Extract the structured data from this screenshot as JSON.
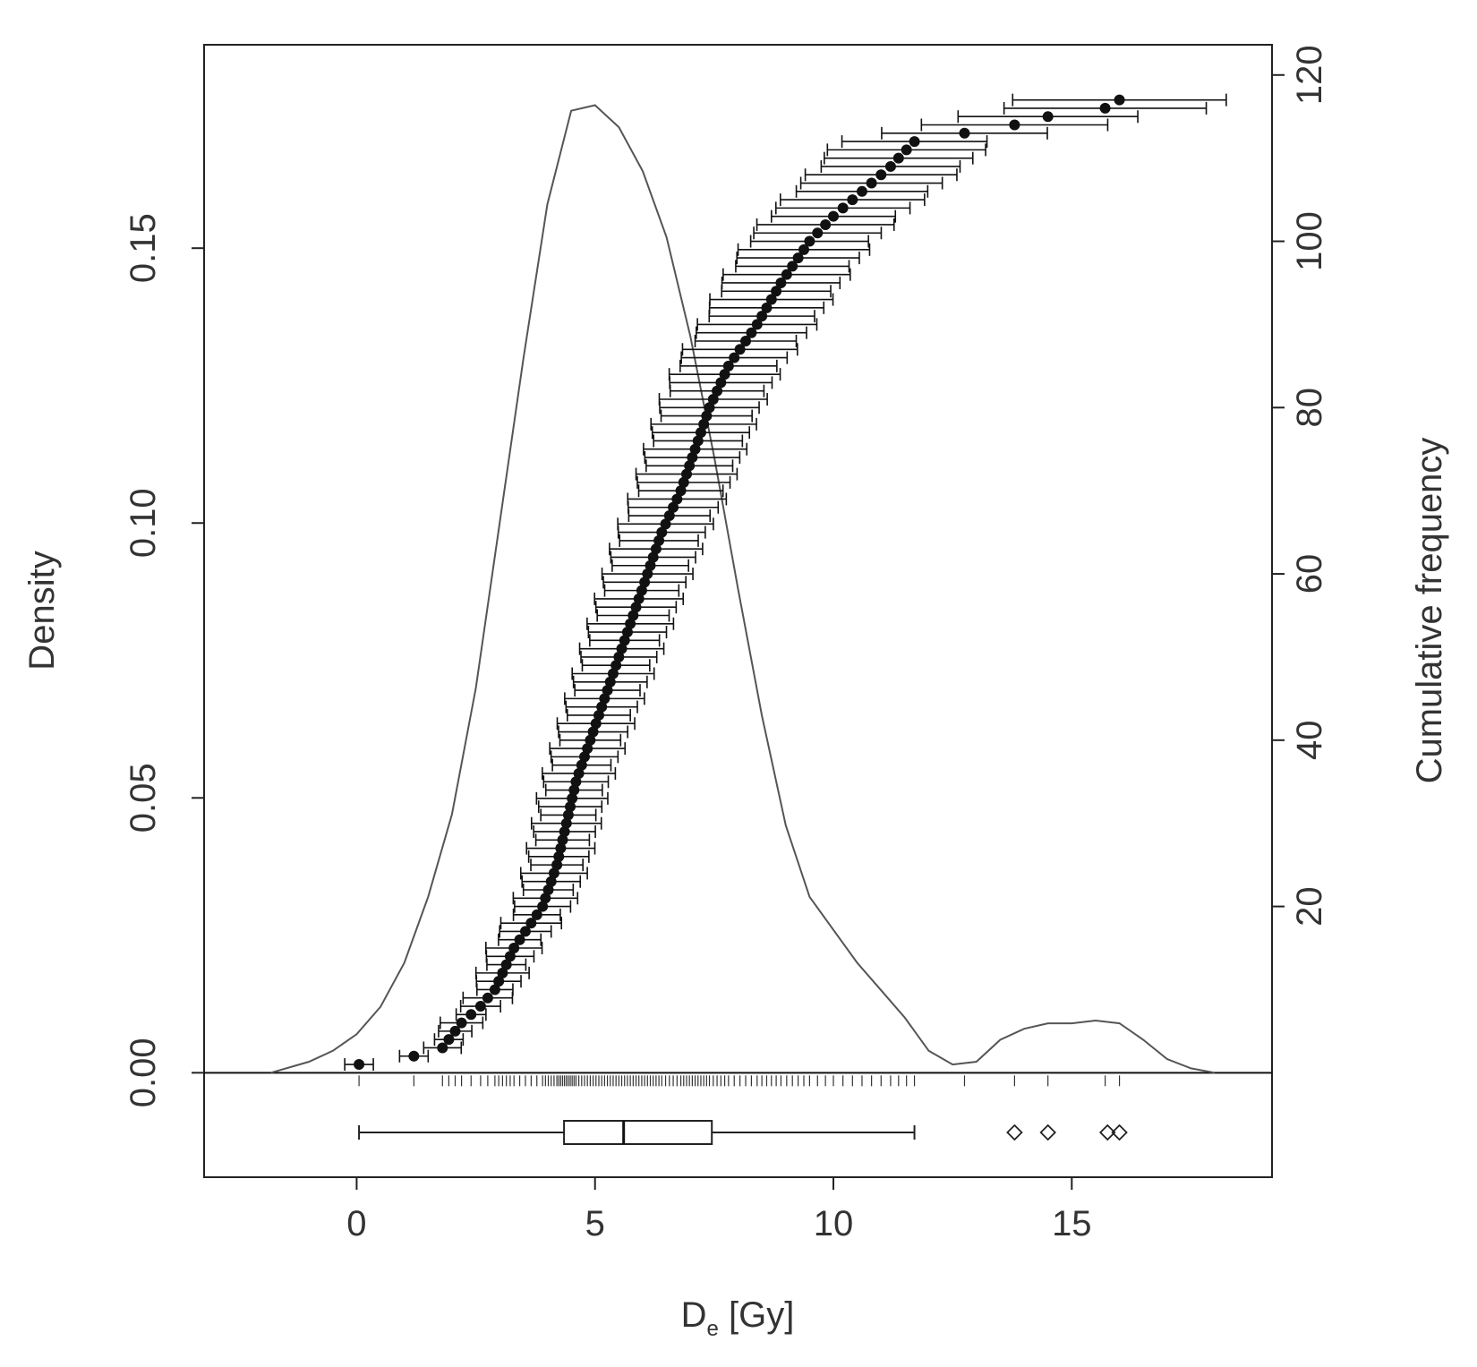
{
  "chart_data": {
    "type": "line",
    "description_free": true,
    "x_axis": {
      "label_main": "D",
      "label_sub": "e",
      "label_unit": " [Gy]",
      "xlim": [
        -3.2,
        19.2
      ],
      "ticks": [
        0,
        5,
        10,
        15
      ]
    },
    "y_left": {
      "label": "Density",
      "ylim": [
        -0.019,
        0.187
      ],
      "ticks": [
        0.0,
        0.05,
        0.1,
        0.15
      ],
      "tick_labels": [
        "0.00",
        "0.05",
        "0.10",
        "0.15"
      ]
    },
    "y_right": {
      "label": "Cumulative frequency",
      "ticks": [
        20,
        40,
        60,
        80,
        100,
        120
      ],
      "tick_labels": [
        "20",
        "40",
        "60",
        "80",
        "100",
        "120"
      ],
      "range": [
        0,
        120
      ]
    },
    "density_curve": {
      "x": [
        -1.8,
        -1.0,
        -0.5,
        0.0,
        0.5,
        1.0,
        1.5,
        2.0,
        2.5,
        3.0,
        3.5,
        4.0,
        4.5,
        5.0,
        5.5,
        6.0,
        6.5,
        7.0,
        7.5,
        8.0,
        8.5,
        9.0,
        9.5,
        10.0,
        10.5,
        11.0,
        11.5,
        12.0,
        12.5,
        13.0,
        13.5,
        14.0,
        14.5,
        15.0,
        15.5,
        16.0,
        16.5,
        17.0,
        17.5,
        18.0
      ],
      "y": [
        0.0,
        0.002,
        0.004,
        0.007,
        0.012,
        0.02,
        0.032,
        0.047,
        0.07,
        0.1,
        0.13,
        0.158,
        0.175,
        0.176,
        0.172,
        0.164,
        0.152,
        0.134,
        0.112,
        0.088,
        0.065,
        0.045,
        0.032,
        0.026,
        0.02,
        0.015,
        0.01,
        0.004,
        0.0015,
        0.002,
        0.006,
        0.008,
        0.009,
        0.009,
        0.0095,
        0.009,
        0.006,
        0.0025,
        0.0008,
        0.0
      ]
    },
    "cumulative_points": {
      "note_free": true,
      "anchor_de": [
        0.05,
        1.2,
        1.8,
        2.2,
        2.6,
        2.9,
        3.3,
        3.9,
        4.2,
        4.4,
        4.6,
        4.9,
        5.2,
        5.5,
        5.8,
        6.1,
        6.4,
        6.8,
        7.1,
        7.4,
        7.8,
        8.4,
        8.9,
        9.5,
        10.0,
        10.6,
        11.2,
        11.7,
        13.8,
        14.5,
        15.7,
        16.0
      ],
      "anchor_rank": [
        1,
        2,
        3,
        6,
        8,
        10,
        15,
        20,
        25,
        30,
        35,
        40,
        45,
        50,
        55,
        60,
        65,
        70,
        75,
        80,
        85,
        90,
        95,
        100,
        103,
        106,
        109,
        112,
        114,
        115,
        116,
        117
      ]
    },
    "boxplot": {
      "min": 0.05,
      "q1": 4.35,
      "median": 5.6,
      "q3": 7.45,
      "whisker_high": 11.7,
      "outliers": [
        13.8,
        14.5,
        15.75,
        16.0
      ]
    }
  }
}
